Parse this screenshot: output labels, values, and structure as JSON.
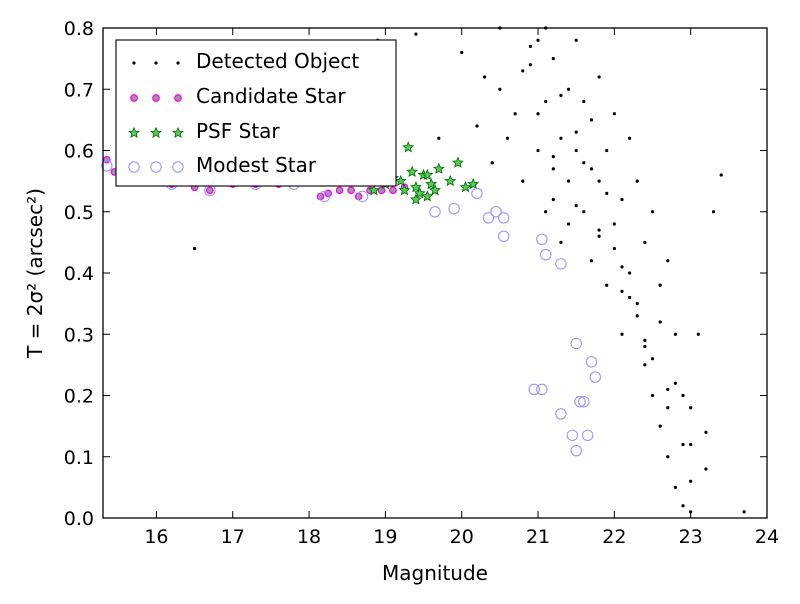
{
  "chart_data": {
    "type": "scatter",
    "title": "",
    "xlabel": "Magnitude",
    "ylabel": "T = 2σ² (arcsec²)",
    "xlim": [
      15.3,
      24
    ],
    "ylim": [
      0.0,
      0.8
    ],
    "grid": false,
    "legend_position": "top-left",
    "x_ticks": [
      "16",
      "17",
      "18",
      "19",
      "20",
      "21",
      "22",
      "23",
      "24"
    ],
    "y_ticks": [
      "0.0",
      "0.1",
      "0.2",
      "0.3",
      "0.4",
      "0.5",
      "0.6",
      "0.7",
      "0.8"
    ],
    "series": [
      {
        "name": "Detected Object",
        "marker": "dot",
        "color": "#000000",
        "x": [
          16.5,
          17.3,
          18.1,
          18.9,
          19.4,
          19.7,
          20.0,
          20.2,
          20.3,
          20.4,
          20.5,
          20.6,
          20.7,
          20.8,
          20.9,
          21.0,
          21.0,
          21.1,
          21.1,
          21.2,
          21.2,
          21.3,
          21.3,
          21.4,
          21.4,
          21.5,
          21.5,
          21.6,
          21.6,
          21.7,
          21.7,
          21.8,
          21.8,
          21.9,
          21.9,
          22.0,
          22.0,
          22.1,
          22.1,
          22.2,
          22.2,
          22.3,
          22.3,
          22.4,
          22.4,
          22.5,
          22.5,
          22.6,
          22.6,
          22.7,
          22.7,
          22.8,
          22.8,
          22.9,
          22.9,
          23.0,
          23.0,
          23.1,
          23.2,
          23.3,
          23.4,
          23.7,
          20.5,
          20.8,
          21.0,
          21.2,
          21.4,
          21.6,
          21.8,
          22.0,
          22.2,
          22.4,
          22.6,
          22.8,
          23.0,
          23.2,
          21.1,
          21.3,
          21.5,
          21.7,
          21.9,
          22.1,
          22.3,
          22.5,
          22.7,
          22.9,
          20.9,
          21.2,
          21.5,
          21.8,
          22.1,
          22.4,
          22.7,
          23.0
        ],
        "y": [
          0.44,
          0.66,
          0.72,
          0.78,
          0.79,
          0.62,
          0.76,
          0.64,
          0.72,
          0.58,
          0.7,
          0.62,
          0.66,
          0.55,
          0.74,
          0.6,
          0.78,
          0.5,
          0.68,
          0.57,
          0.75,
          0.62,
          0.45,
          0.7,
          0.55,
          0.78,
          0.6,
          0.5,
          0.68,
          0.65,
          0.42,
          0.72,
          0.55,
          0.6,
          0.38,
          0.66,
          0.48,
          0.52,
          0.3,
          0.62,
          0.4,
          0.55,
          0.35,
          0.45,
          0.25,
          0.5,
          0.2,
          0.38,
          0.15,
          0.42,
          0.1,
          0.3,
          0.05,
          0.2,
          0.02,
          0.12,
          0.01,
          0.3,
          0.14,
          0.5,
          0.56,
          0.01,
          0.8,
          0.73,
          0.66,
          0.52,
          0.48,
          0.58,
          0.46,
          0.44,
          0.36,
          0.28,
          0.32,
          0.22,
          0.18,
          0.08,
          0.8,
          0.69,
          0.63,
          0.57,
          0.53,
          0.41,
          0.33,
          0.26,
          0.18,
          0.12,
          0.77,
          0.59,
          0.51,
          0.47,
          0.37,
          0.29,
          0.21,
          0.06
        ]
      },
      {
        "name": "Candidate Star",
        "marker": "circle",
        "color": "#ff00ff",
        "x": [
          15.35,
          15.45,
          15.7,
          16.0,
          16.2,
          16.5,
          16.7,
          17.0,
          17.3,
          17.6,
          17.9,
          18.15,
          18.25,
          18.4,
          18.55,
          18.65,
          18.8,
          18.95,
          19.1,
          19.25
        ],
        "y": [
          0.585,
          0.565,
          0.555,
          0.55,
          0.545,
          0.54,
          0.535,
          0.545,
          0.545,
          0.545,
          0.55,
          0.525,
          0.53,
          0.535,
          0.535,
          0.525,
          0.535,
          0.535,
          0.535,
          0.54
        ]
      },
      {
        "name": "PSF Star",
        "marker": "star",
        "color": "#00aa00",
        "x": [
          18.85,
          19.0,
          19.1,
          19.2,
          19.3,
          19.35,
          19.4,
          19.45,
          19.5,
          19.55,
          19.6,
          19.65,
          19.7,
          19.85,
          19.95,
          20.05,
          20.15,
          19.25,
          19.4,
          19.55
        ],
        "y": [
          0.535,
          0.545,
          0.555,
          0.55,
          0.605,
          0.565,
          0.54,
          0.53,
          0.56,
          0.525,
          0.545,
          0.535,
          0.57,
          0.55,
          0.58,
          0.54,
          0.545,
          0.535,
          0.52,
          0.56
        ]
      },
      {
        "name": "Modest Star",
        "marker": "open-circle",
        "color": "#9999ff",
        "x": [
          15.35,
          15.9,
          16.2,
          16.7,
          17.3,
          17.8,
          18.2,
          18.7,
          19.65,
          19.9,
          20.2,
          20.35,
          20.45,
          20.55,
          20.55,
          21.05,
          21.1,
          21.3,
          20.95,
          21.05,
          21.5,
          21.55,
          21.7,
          21.75,
          21.6,
          21.3,
          21.45,
          21.65,
          21.5
        ],
        "y": [
          0.575,
          0.575,
          0.545,
          0.535,
          0.545,
          0.545,
          0.525,
          0.525,
          0.5,
          0.505,
          0.53,
          0.49,
          0.5,
          0.49,
          0.46,
          0.455,
          0.43,
          0.415,
          0.21,
          0.21,
          0.285,
          0.19,
          0.255,
          0.23,
          0.19,
          0.17,
          0.135,
          0.135,
          0.11
        ]
      }
    ]
  }
}
